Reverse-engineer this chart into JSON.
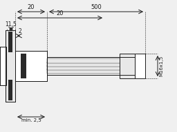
{
  "bg_color": "#f0f0f0",
  "line_color": "#1a1a1a",
  "dark_fill": "#2a2a2a",
  "light_fill": "#e8e8e8",
  "white_fill": "#ffffff",
  "fig_w": 2.56,
  "fig_h": 1.92,
  "dim_20_label": "20",
  "dim_500_label": "500",
  "dim_115_label": "11,5",
  "dim_2_label": "2",
  "dim_min25_label": "min. 2,5",
  "dim_M16_label": "M16x1,5"
}
